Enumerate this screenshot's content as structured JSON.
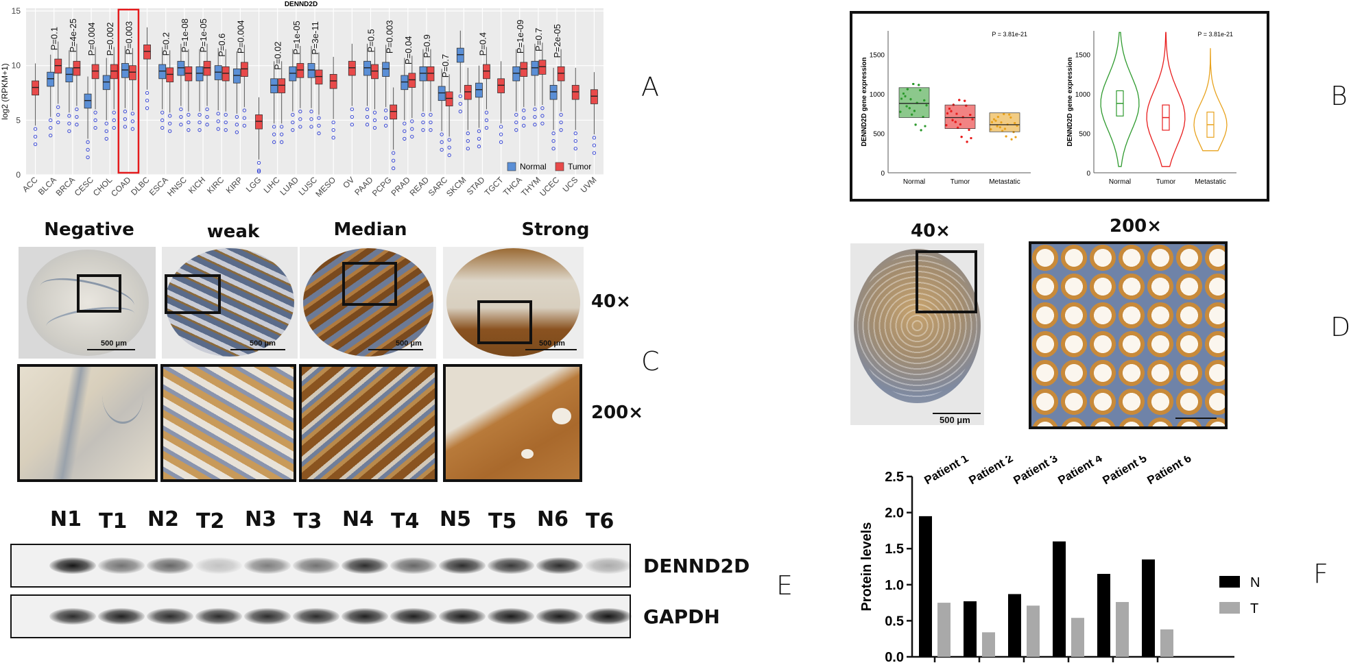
{
  "panels": {
    "A": "A",
    "B": "B",
    "C": "C",
    "D": "D",
    "E": "E",
    "F": "F"
  },
  "panelA": {
    "title": "DENND2D",
    "ylabel": "log2 (RPKM+1)",
    "yticks": [
      "0",
      "5",
      "10",
      "15"
    ],
    "legend": {
      "normal": "Normal",
      "tumor": "Tumor"
    },
    "colors": {
      "normal": "#5b8fd6",
      "tumor": "#e84a4a",
      "outlier": "#2b3bd6",
      "highlight": "#e41a1c"
    },
    "highlight_category": "COAD",
    "chart_data": {
      "type": "box",
      "title": "DENND2D",
      "ylabel": "log2 (RPKM+1)",
      "ylim": [
        0,
        15
      ],
      "categories": [
        "ACC",
        "BLCA",
        "BRCA",
        "CESC",
        "CHOL",
        "COAD",
        "DLBC",
        "ESCA",
        "HNSC",
        "KICH",
        "KIRC",
        "KIRP",
        "LGG",
        "LIHC",
        "LUAD",
        "LUSC",
        "MESO",
        "OV",
        "PAAD",
        "PCPG",
        "PRAD",
        "READ",
        "SARC",
        "SKCM",
        "STAD",
        "TGCT",
        "THCA",
        "THYM",
        "UCEC",
        "UCS",
        "UVM"
      ],
      "pvalues": [
        "",
        "P=0.1",
        "P=4e-25",
        "P=0.004",
        "P=0.002",
        "P=0.003",
        "",
        "P=0.2",
        "P=1e-08",
        "P=1e-05",
        "P=0.6",
        "P=0.004",
        "",
        "P=0.02",
        "P=1e-05",
        "P=3e-11",
        "",
        "",
        "P=0.5",
        "P=0.003",
        "P=0.04",
        "P=0.9",
        "P=0.7",
        "",
        "P=0.4",
        "",
        "P=1e-09",
        "P=0.7",
        "P=2e-05",
        "",
        ""
      ],
      "normal_median": [
        null,
        8.8,
        9.2,
        6.8,
        8.5,
        9.6,
        null,
        9.5,
        9.8,
        9.3,
        9.4,
        9.1,
        null,
        8.2,
        9.3,
        9.6,
        null,
        null,
        9.8,
        9.7,
        8.5,
        9.3,
        7.5,
        11.0,
        7.8,
        null,
        9.3,
        9.8,
        7.6,
        null,
        null
      ],
      "tumor_median": [
        8.0,
        10.0,
        9.8,
        9.5,
        9.5,
        9.4,
        11.3,
        9.2,
        9.3,
        9.8,
        9.3,
        9.7,
        4.9,
        8.2,
        9.6,
        9.0,
        8.6,
        9.8,
        9.5,
        5.8,
        8.7,
        9.3,
        7.0,
        7.6,
        9.5,
        8.2,
        9.7,
        9.9,
        9.3,
        7.6,
        7.2
      ]
    }
  },
  "panelB": {
    "left": {
      "ylabel": "DENND2D gene expression",
      "pvalue": "P = 3.81e-21",
      "yticks": [
        "0",
        "500",
        "1000",
        "1500"
      ],
      "groups": [
        "Normal",
        "Tumor",
        "Metastatic"
      ]
    },
    "right": {
      "ylabel": "DENND2D gene expression",
      "pvalue": "P = 3.81e-21",
      "yticks": [
        "0",
        "500",
        "1000",
        "1500"
      ],
      "groups": [
        "Normal",
        "Tumor",
        "Metastatic"
      ]
    },
    "chart_data": [
      {
        "type": "box",
        "ylabel": "DENND2D gene expression",
        "ylim": [
          0,
          1800
        ],
        "categories": [
          "Normal",
          "Tumor",
          "Metastatic"
        ],
        "median": [
          880,
          700,
          610
        ],
        "q1": [
          700,
          560,
          520
        ],
        "q3": [
          1080,
          860,
          760
        ]
      },
      {
        "type": "violin",
        "ylabel": "DENND2D gene expression",
        "ylim": [
          0,
          1800
        ],
        "categories": [
          "Normal",
          "Tumor",
          "Metastatic"
        ],
        "median": [
          880,
          700,
          610
        ]
      }
    ],
    "colors": {
      "normal": "#2e9a2e",
      "tumor": "#e81d1d",
      "metastatic": "#e8a21d"
    }
  },
  "panelC": {
    "grades": [
      "Negative",
      "weak",
      "Median",
      "Strong"
    ],
    "mag40": "40×",
    "mag200": "200×",
    "scale": "500 μm"
  },
  "panelD": {
    "mag40": "40×",
    "mag200": "200×",
    "scale": "500 μm"
  },
  "panelE": {
    "lanes": [
      "N1",
      "T1",
      "N2",
      "T2",
      "N3",
      "T3",
      "N4",
      "T4",
      "N5",
      "T5",
      "N6",
      "T6"
    ],
    "band1": "DENND2D",
    "band2": "GAPDH",
    "dennd2d_intensity": [
      0.95,
      0.55,
      0.6,
      0.2,
      0.5,
      0.55,
      0.85,
      0.6,
      0.85,
      0.8,
      0.85,
      0.3
    ],
    "gapdh_intensity": [
      0.85,
      0.9,
      0.85,
      0.85,
      0.85,
      0.85,
      0.9,
      0.9,
      0.92,
      0.92,
      0.92,
      0.95
    ]
  },
  "panelF": {
    "ylabel": "Protein levels",
    "yticks": [
      "0.0",
      "0.5",
      "1.0",
      "1.5",
      "2.0",
      "2.5"
    ],
    "legend": {
      "n": "N",
      "t": "T"
    },
    "colors": {
      "n": "#000000",
      "t": "#a9a9a9"
    },
    "chart_data": {
      "type": "bar",
      "categories": [
        "Patient 1",
        "Patient 2",
        "Patient 3",
        "Patient 4",
        "Patient 5",
        "Patient 6"
      ],
      "ylabel": "Protein levels",
      "ylim": [
        0,
        2.5
      ],
      "series": [
        {
          "name": "N",
          "values": [
            1.95,
            0.77,
            0.87,
            1.6,
            1.15,
            1.35
          ]
        },
        {
          "name": "T",
          "values": [
            0.75,
            0.34,
            0.71,
            0.54,
            0.76,
            0.38
          ]
        }
      ]
    }
  }
}
